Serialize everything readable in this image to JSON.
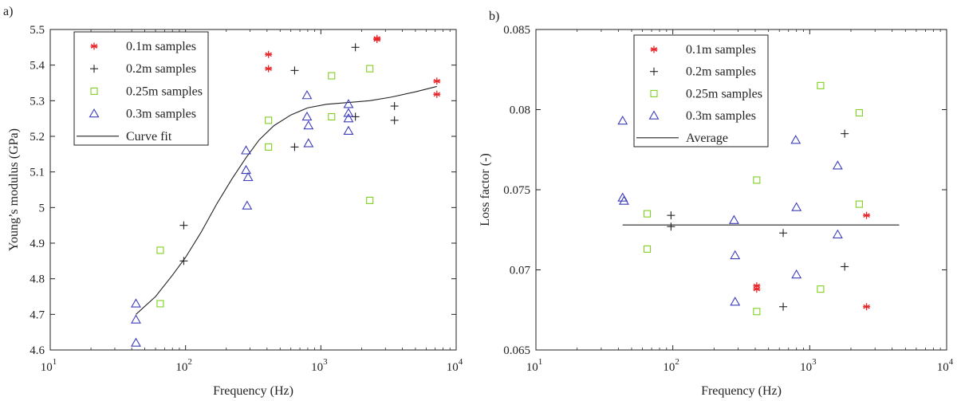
{
  "colors": {
    "red": "#e8262a",
    "black": "#222222",
    "green": "#7fcf1f",
    "blue": "#3d3dbb",
    "fit": "#222222"
  },
  "chart_data": [
    {
      "panel_label": "a)",
      "type": "scatter",
      "xscale": "log",
      "xlim": [
        10,
        10000
      ],
      "ylim": [
        4.6,
        5.5
      ],
      "xlabel": "Frequency (Hz)",
      "ylabel": "Young’s modulus (GPa)",
      "x_ticks": [
        {
          "base": "10",
          "exp": "1",
          "value": 10
        },
        {
          "base": "10",
          "exp": "2",
          "value": 100
        },
        {
          "base": "10",
          "exp": "3",
          "value": 1000
        },
        {
          "base": "10",
          "exp": "4",
          "value": 10000
        }
      ],
      "y_ticks": [
        {
          "label": "4.6",
          "value": 4.6
        },
        {
          "label": "4.7",
          "value": 4.7
        },
        {
          "label": "4.8",
          "value": 4.8
        },
        {
          "label": "4.9",
          "value": 4.9
        },
        {
          "label": "5",
          "value": 5.0
        },
        {
          "label": "5.1",
          "value": 5.1
        },
        {
          "label": "5.2",
          "value": 5.2
        },
        {
          "label": "5.3",
          "value": 5.3
        },
        {
          "label": "5.4",
          "value": 5.4
        },
        {
          "label": "5.5",
          "value": 5.5
        }
      ],
      "legend_position": "top-left",
      "series": [
        {
          "name": "0.1m samples",
          "marker": "asterisk",
          "color": "#e8262a",
          "points": [
            [
              410,
              5.43
            ],
            [
              410,
              5.39
            ],
            [
              2600,
              5.475
            ],
            [
              2600,
              5.472
            ],
            [
              7200,
              5.355
            ],
            [
              7200,
              5.318
            ]
          ]
        },
        {
          "name": "0.2m samples",
          "marker": "plus",
          "color": "#222222",
          "points": [
            [
              97,
              4.95
            ],
            [
              97,
              4.85
            ],
            [
              640,
              5.385
            ],
            [
              640,
              5.17
            ],
            [
              1800,
              5.45
            ],
            [
              1800,
              5.255
            ],
            [
              3500,
              5.285
            ],
            [
              3500,
              5.245
            ]
          ]
        },
        {
          "name": "0.25m samples",
          "marker": "square",
          "color": "#7fcf1f",
          "points": [
            [
              65,
              4.88
            ],
            [
              65,
              4.73
            ],
            [
              410,
              5.245
            ],
            [
              410,
              5.17
            ],
            [
              1200,
              5.37
            ],
            [
              1200,
              5.255
            ],
            [
              2300,
              5.39
            ],
            [
              2300,
              5.02
            ]
          ]
        },
        {
          "name": "0.3m samples",
          "marker": "triangle",
          "color": "#3d3dbb",
          "points": [
            [
              43,
              4.73
            ],
            [
              43,
              4.685
            ],
            [
              43,
              4.62
            ],
            [
              280,
              5.16
            ],
            [
              280,
              5.105
            ],
            [
              290,
              5.085
            ],
            [
              285,
              5.005
            ],
            [
              790,
              5.315
            ],
            [
              790,
              5.255
            ],
            [
              810,
              5.23
            ],
            [
              810,
              5.18
            ],
            [
              1600,
              5.29
            ],
            [
              1600,
              5.265
            ],
            [
              1600,
              5.25
            ],
            [
              1600,
              5.215
            ]
          ]
        }
      ],
      "lines": [
        {
          "name": "Curve fit",
          "color": "#222222",
          "points": [
            [
              43,
              4.7
            ],
            [
              60,
              4.75
            ],
            [
              80,
              4.81
            ],
            [
              100,
              4.86
            ],
            [
              130,
              4.93
            ],
            [
              170,
              5.01
            ],
            [
              220,
              5.08
            ],
            [
              280,
              5.14
            ],
            [
              350,
              5.19
            ],
            [
              450,
              5.23
            ],
            [
              600,
              5.26
            ],
            [
              800,
              5.28
            ],
            [
              1100,
              5.29
            ],
            [
              1600,
              5.295
            ],
            [
              2300,
              5.3
            ],
            [
              3300,
              5.31
            ],
            [
              5000,
              5.325
            ],
            [
              7200,
              5.34
            ]
          ]
        }
      ]
    },
    {
      "panel_label": "b)",
      "type": "scatter",
      "xscale": "log",
      "xlim": [
        10,
        10000
      ],
      "ylim": [
        0.065,
        0.085
      ],
      "xlabel": "Frequency (Hz)",
      "ylabel": "Loss factor (-)",
      "x_ticks": [
        {
          "base": "10",
          "exp": "1",
          "value": 10
        },
        {
          "base": "10",
          "exp": "2",
          "value": 100
        },
        {
          "base": "10",
          "exp": "3",
          "value": 1000
        },
        {
          "base": "10",
          "exp": "4",
          "value": 10000
        }
      ],
      "y_ticks": [
        {
          "label": "0.065",
          "value": 0.065
        },
        {
          "label": "0.07",
          "value": 0.07
        },
        {
          "label": "0.075",
          "value": 0.075
        },
        {
          "label": "0.08",
          "value": 0.08
        },
        {
          "label": "0.085",
          "value": 0.085
        }
      ],
      "legend_position": "top-center",
      "series": [
        {
          "name": "0.1m samples",
          "marker": "asterisk",
          "color": "#e8262a",
          "points": [
            [
              410,
              0.069
            ],
            [
              410,
              0.0688
            ],
            [
              2600,
              0.0734
            ],
            [
              2600,
              0.0677
            ]
          ]
        },
        {
          "name": "0.2m samples",
          "marker": "plus",
          "color": "#222222",
          "points": [
            [
              97,
              0.0734
            ],
            [
              97,
              0.0727
            ],
            [
              640,
              0.0723
            ],
            [
              640,
              0.0677
            ],
            [
              1800,
              0.0785
            ],
            [
              1800,
              0.0702
            ]
          ]
        },
        {
          "name": "0.25m samples",
          "marker": "square",
          "color": "#7fcf1f",
          "points": [
            [
              65,
              0.0735
            ],
            [
              65,
              0.0713
            ],
            [
              410,
              0.0756
            ],
            [
              410,
              0.0674
            ],
            [
              1200,
              0.0815
            ],
            [
              1200,
              0.0688
            ],
            [
              2300,
              0.0798
            ],
            [
              2300,
              0.0741
            ]
          ]
        },
        {
          "name": "0.3m samples",
          "marker": "triangle",
          "color": "#3d3dbb",
          "points": [
            [
              43,
              0.0793
            ],
            [
              43,
              0.0745
            ],
            [
              44,
              0.0743
            ],
            [
              280,
              0.0731
            ],
            [
              285,
              0.0709
            ],
            [
              285,
              0.068
            ],
            [
              790,
              0.0781
            ],
            [
              800,
              0.0739
            ],
            [
              800,
              0.0697
            ],
            [
              1600,
              0.0765
            ],
            [
              1600,
              0.0722
            ]
          ]
        }
      ],
      "lines": [
        {
          "name": "Average",
          "color": "#222222",
          "points": [
            [
              43,
              0.0728
            ],
            [
              4500,
              0.0728
            ]
          ]
        }
      ]
    }
  ]
}
